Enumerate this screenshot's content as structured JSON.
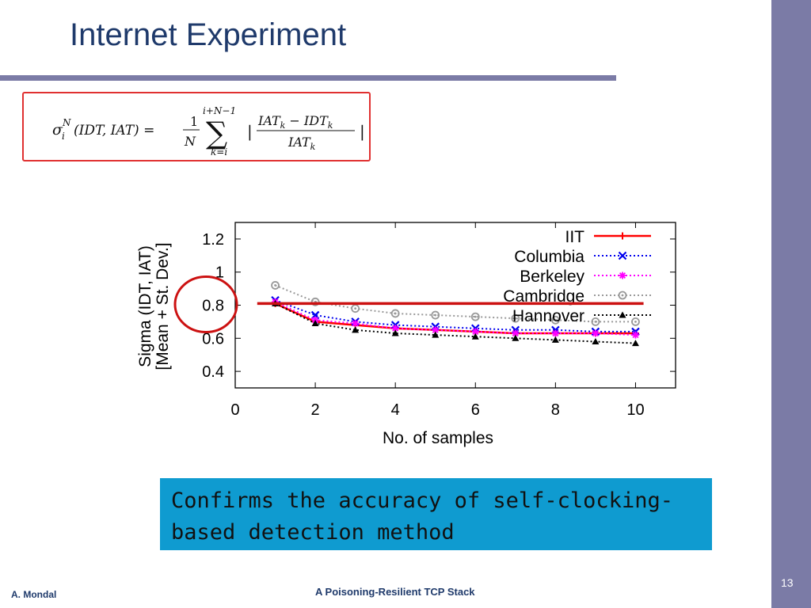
{
  "slide": {
    "title": "Internet Experiment",
    "callout": [
      "Confirms the accuracy of self-clocking-",
      "based detection method"
    ],
    "author": "A. Mondal",
    "footer_title": "A Poisoning-Resilient TCP Stack",
    "page_number": "13",
    "colors": {
      "sidebar": "#7b7ba6",
      "title": "#1f3a6b",
      "callout_bg": "#0f9bd0",
      "highlight": "#cc1111"
    }
  },
  "formula": {
    "lhs_sigma": "σ",
    "lhs_super": "N",
    "lhs_sub": "i",
    "lhs_args": "(IDT, IAT) =",
    "frac_num": "1",
    "frac_den": "N",
    "sum_symbol": "∑",
    "sum_upper": "i+N−1",
    "sum_lower": "k=i",
    "abs_open": "|",
    "num_a": "IAT",
    "num_a_sub": "k",
    "num_minus": " − IDT",
    "num_b_sub": "k",
    "den": "IAT",
    "den_sub": "k",
    "abs_close": "|"
  },
  "chart_data": {
    "type": "line",
    "xlabel": "No. of samples",
    "ylabel": [
      "Sigma (IDT, IAT)",
      "[Mean + St. Dev.]"
    ],
    "xlim": [
      0,
      11
    ],
    "ylim": [
      0.3,
      1.3
    ],
    "xticks": [
      0,
      2,
      4,
      6,
      8,
      10
    ],
    "yticks": [
      0.4,
      0.6,
      0.8,
      1,
      1.2
    ],
    "ytick_labels": [
      "0.4",
      "0.6",
      "0.8",
      "1",
      "1.2"
    ],
    "legend_position": "top-right",
    "x": [
      1,
      2,
      3,
      4,
      5,
      6,
      7,
      8,
      9,
      10
    ],
    "series": [
      {
        "name": "IIT",
        "color": "#ff0000",
        "marker": "plus",
        "style": "solid",
        "values": [
          0.81,
          0.7,
          0.68,
          0.66,
          0.65,
          0.64,
          0.63,
          0.63,
          0.63,
          0.63
        ]
      },
      {
        "name": "Columbia",
        "color": "#0000ee",
        "marker": "x",
        "style": "dotted",
        "values": [
          0.83,
          0.74,
          0.7,
          0.68,
          0.67,
          0.66,
          0.65,
          0.65,
          0.64,
          0.64
        ]
      },
      {
        "name": "Berkeley",
        "color": "#ff00ff",
        "marker": "star",
        "style": "dotted",
        "values": [
          0.82,
          0.71,
          0.69,
          0.66,
          0.65,
          0.64,
          0.63,
          0.63,
          0.63,
          0.62
        ]
      },
      {
        "name": "Cambridge",
        "color": "#999999",
        "marker": "circle",
        "style": "dotted",
        "values": [
          0.92,
          0.82,
          0.78,
          0.75,
          0.74,
          0.73,
          0.72,
          0.71,
          0.7,
          0.7
        ]
      },
      {
        "name": "Hannover",
        "color": "#000000",
        "marker": "triangle",
        "style": "dotted",
        "values": [
          0.81,
          0.69,
          0.65,
          0.63,
          0.62,
          0.61,
          0.6,
          0.59,
          0.58,
          0.57
        ]
      }
    ],
    "annotations": {
      "hline": {
        "y": 0.81,
        "x_from": 0.55,
        "x_to": 10.2,
        "color": "#cc1111"
      },
      "circle_tick": 0.8
    }
  }
}
